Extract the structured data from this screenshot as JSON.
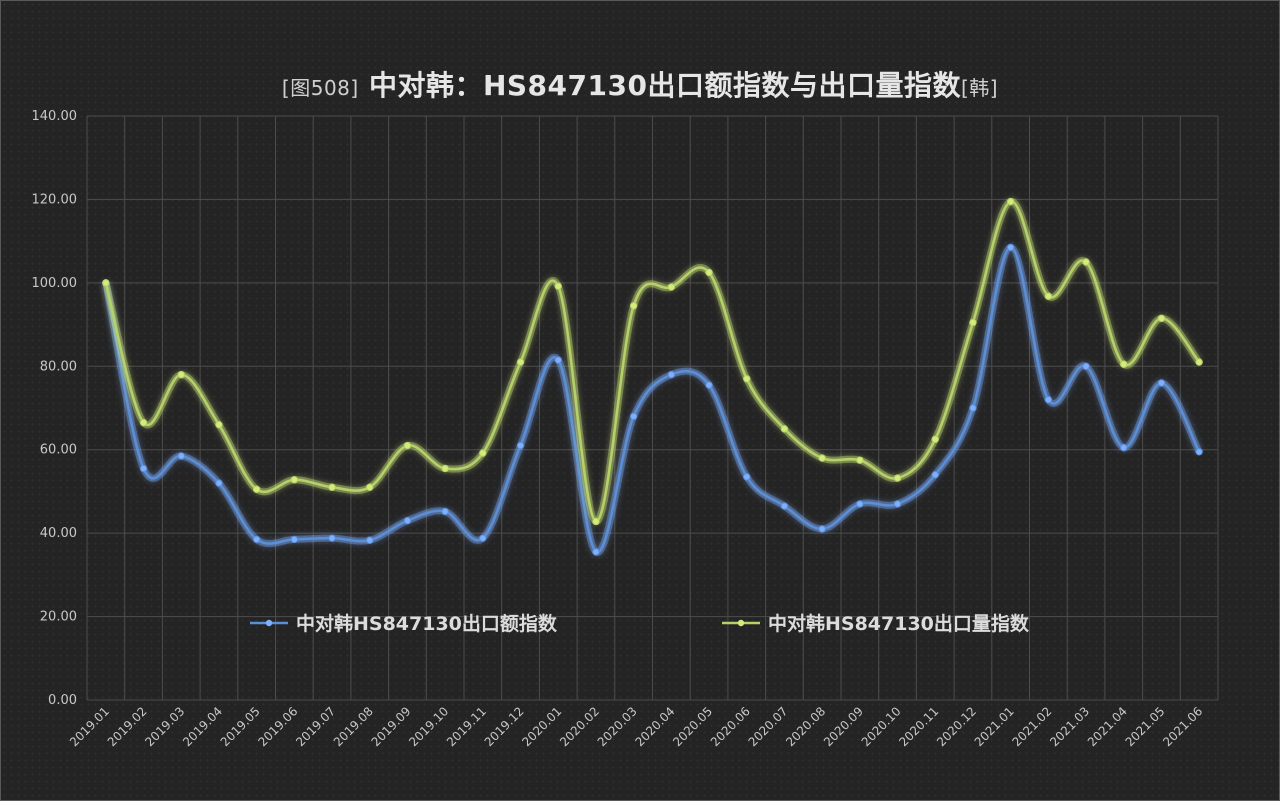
{
  "title": {
    "prefix": "[图508]",
    "main": "中对韩：HS847130出口额指数与出口量指数",
    "suffix": "[韩]"
  },
  "colors": {
    "background": "#242424",
    "grid": "#4d4d4d",
    "series1": "#5b8fd6",
    "series1_glow": "#7fb0ff",
    "series2": "#b5d26a",
    "series2_glow": "#d4ec7a",
    "text": "#c8c8c8"
  },
  "chart_data": {
    "type": "line",
    "title": "[图508] 中对韩：HS847130出口额指数与出口量指数[韩]",
    "xlabel": "",
    "ylabel": "",
    "ylim": [
      0,
      140
    ],
    "yticks": [
      "0.00",
      "20.00",
      "40.00",
      "60.00",
      "80.00",
      "100.00",
      "120.00",
      "140.00"
    ],
    "grid": true,
    "legend_position": "bottom-center",
    "x": [
      "2019.01",
      "2019.02",
      "2019.03",
      "2019.04",
      "2019.05",
      "2019.06",
      "2019.07",
      "2019.08",
      "2019.09",
      "2019.10",
      "2019.11",
      "2019.12",
      "2020.01",
      "2020.02",
      "2020.03",
      "2020.04",
      "2020.05",
      "2020.06",
      "2020.07",
      "2020.08",
      "2020.09",
      "2020.10",
      "2020.11",
      "2020.12",
      "2021.01",
      "2021.02",
      "2021.03",
      "2021.04",
      "2021.05",
      "2021.06"
    ],
    "series": [
      {
        "name": "中对韩HS847130出口额指数",
        "values": [
          100.0,
          55.5,
          58.5,
          52.0,
          38.5,
          38.5,
          38.8,
          38.3,
          43.0,
          45.2,
          38.8,
          61.0,
          81.5,
          35.5,
          68.0,
          78.0,
          75.5,
          53.5,
          46.5,
          41.0,
          47.0,
          47.0,
          54.0,
          70.0,
          108.5,
          72.0,
          80.0,
          60.5,
          76.0,
          59.5
        ]
      },
      {
        "name": "中对韩HS847130出口量指数",
        "values": [
          100.0,
          66.5,
          78.0,
          66.0,
          50.5,
          52.8,
          51.0,
          51.0,
          61.0,
          55.5,
          59.2,
          81.0,
          99.2,
          42.8,
          94.5,
          99.0,
          102.5,
          77.0,
          65.0,
          58.0,
          57.5,
          53.2,
          62.5,
          90.5,
          119.5,
          96.8,
          105.0,
          80.5,
          91.5,
          81.0
        ]
      }
    ]
  }
}
